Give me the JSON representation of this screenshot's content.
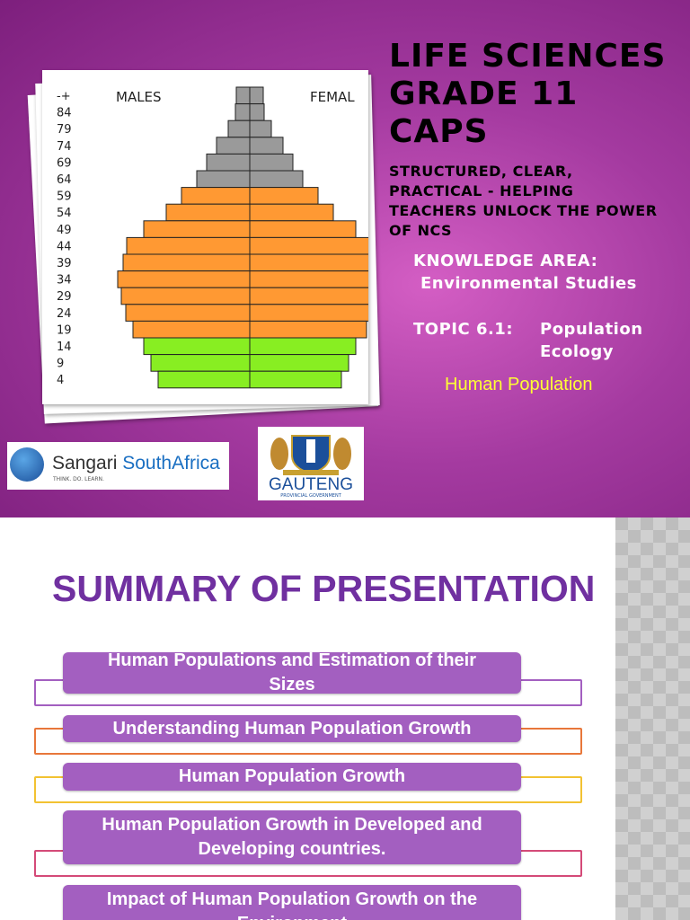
{
  "slide1": {
    "title": "LIFE SCIENCES GRADE 11 CAPS",
    "subtitle": "STRUCTURED, CLEAR, PRACTICAL - HELPING TEACHERS UNLOCK THE POWER OF NCS",
    "knowledge_area_label": "KNOWLEDGE AREA:",
    "knowledge_area": "Environmental Studies",
    "topic_label": "TOPIC 6.1:",
    "topic": "Population Ecology",
    "highlight": "Human Population",
    "pyramid": {
      "males_label": "MALES",
      "females_label": "FEMAL",
      "age_groups": [
        "-+",
        "84",
        "79",
        "74",
        "69",
        "64",
        "59",
        "54",
        "49",
        "44",
        "39",
        "34",
        "29",
        "24",
        "19",
        "14",
        "9",
        "4"
      ],
      "values": [
        15,
        16,
        24,
        37,
        48,
        59,
        76,
        93,
        118,
        137,
        141,
        147,
        143,
        138,
        130,
        118,
        110,
        102
      ],
      "colors": [
        "#9a9a9a",
        "#9a9a9a",
        "#9a9a9a",
        "#9a9a9a",
        "#9a9a9a",
        "#9a9a9a",
        "#ff9933",
        "#ff9933",
        "#ff9933",
        "#ff9933",
        "#ff9933",
        "#ff9933",
        "#ff9933",
        "#ff9933",
        "#ff9933",
        "#88ee22",
        "#88ee22",
        "#88ee22"
      ]
    },
    "logos": {
      "sangari_name": "Sangari",
      "sangari_country": "SouthAfrica",
      "sangari_tagline": "THINK. DO. LEARN.",
      "gauteng_name": "GAUTENG",
      "gauteng_sub": "PROVINCIAL GOVERNMENT"
    }
  },
  "slide2": {
    "title": "SUMMARY OF PRESENTATION",
    "items": [
      "Human Populations and Estimation of their Sizes",
      "Understanding Human Population Growth",
      "Human Population Growth",
      "Human Population Growth in Developed and Developing countries.",
      "Impact of Human Population Growth on the Environment"
    ]
  }
}
